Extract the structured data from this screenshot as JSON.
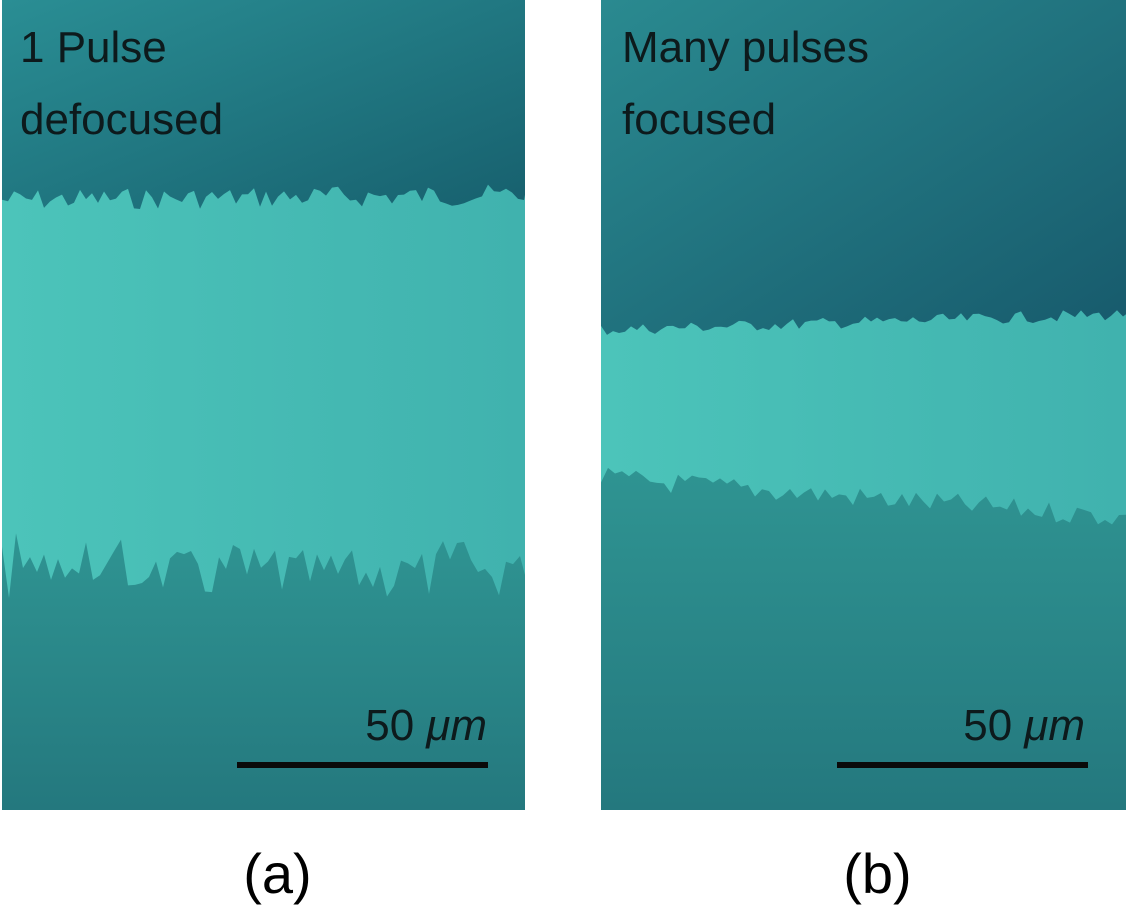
{
  "panels": [
    {
      "label_lines": [
        "1 Pulse",
        "defocused"
      ],
      "scale_number": "50",
      "scale_unit": "μm",
      "caption": "(a)"
    },
    {
      "label_lines": [
        "Many pulses",
        "focused"
      ],
      "scale_number": "50",
      "scale_unit": "μm",
      "caption": "(b)"
    }
  ]
}
